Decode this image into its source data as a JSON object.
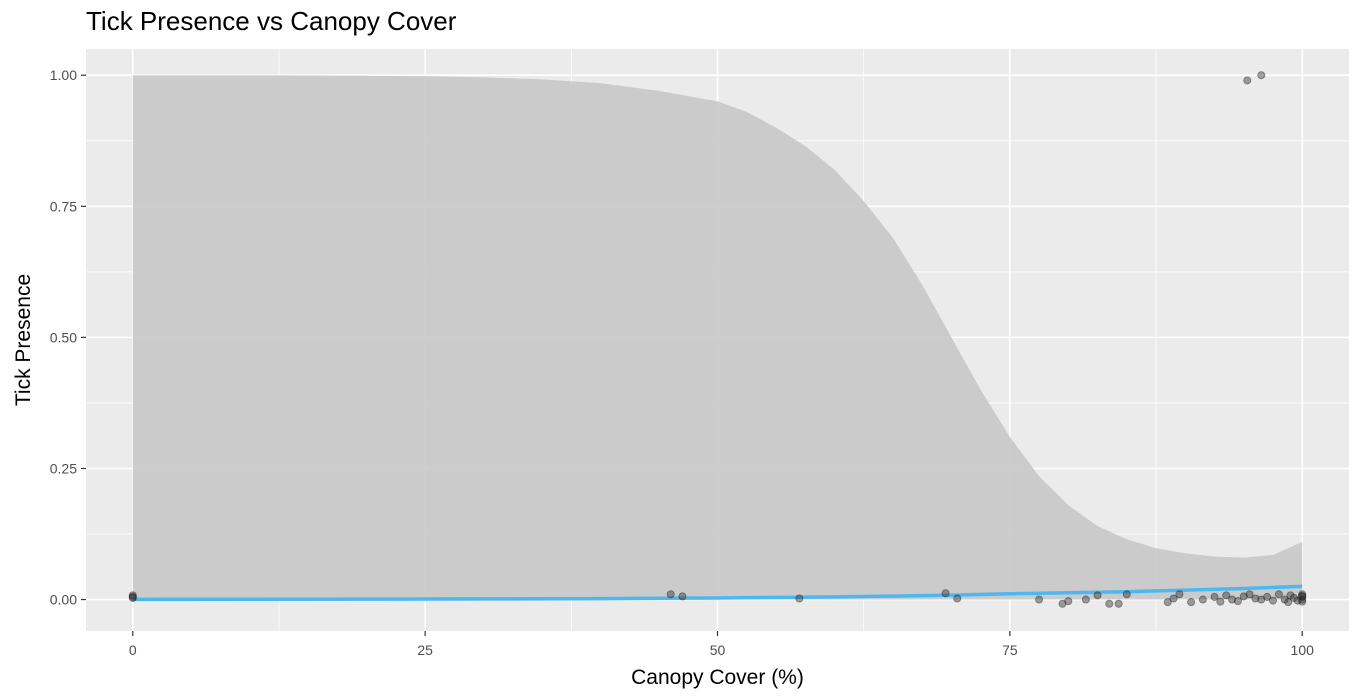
{
  "chart_data": {
    "type": "scatter",
    "title": "Tick Presence vs Canopy Cover",
    "xlabel": "Canopy Cover (%)",
    "ylabel": "Tick Presence",
    "xlim": [
      -4,
      104
    ],
    "ylim": [
      -0.06,
      1.05
    ],
    "x_ticks": [
      0,
      25,
      50,
      75,
      100
    ],
    "x_tick_labels": [
      "0",
      "25",
      "50",
      "75",
      "100"
    ],
    "y_ticks": [
      0,
      0.25,
      0.5,
      0.75,
      1
    ],
    "y_tick_labels": [
      "0.00",
      "0.25",
      "0.50",
      "0.75",
      "1.00"
    ],
    "grid": true,
    "colors": {
      "panel": "#ebebeb",
      "grid": "#ffffff",
      "ribbon": "#c8c8c8",
      "line": "#4db8f0",
      "points": "#333333"
    },
    "points": [
      {
        "x": 0,
        "y": 0.005
      },
      {
        "x": 0,
        "y": 0.008
      },
      {
        "x": 0,
        "y": 0.003
      },
      {
        "x": 46,
        "y": 0.01
      },
      {
        "x": 47,
        "y": 0.006
      },
      {
        "x": 57,
        "y": 0.002
      },
      {
        "x": 69.5,
        "y": 0.012
      },
      {
        "x": 70.5,
        "y": 0.002
      },
      {
        "x": 77.5,
        "y": 0.0
      },
      {
        "x": 79.5,
        "y": -0.008
      },
      {
        "x": 80,
        "y": -0.003
      },
      {
        "x": 81.5,
        "y": 0.0
      },
      {
        "x": 82.5,
        "y": 0.008
      },
      {
        "x": 83.5,
        "y": -0.008
      },
      {
        "x": 84.3,
        "y": -0.008
      },
      {
        "x": 85,
        "y": 0.01
      },
      {
        "x": 88.5,
        "y": -0.005
      },
      {
        "x": 89,
        "y": 0.002
      },
      {
        "x": 89.5,
        "y": 0.01
      },
      {
        "x": 90.5,
        "y": -0.005
      },
      {
        "x": 91.5,
        "y": 0.0
      },
      {
        "x": 92.5,
        "y": 0.005
      },
      {
        "x": 93,
        "y": -0.004
      },
      {
        "x": 93.5,
        "y": 0.008
      },
      {
        "x": 94,
        "y": 0.0
      },
      {
        "x": 94.5,
        "y": -0.003
      },
      {
        "x": 95,
        "y": 0.006
      },
      {
        "x": 95.5,
        "y": 0.01
      },
      {
        "x": 96,
        "y": 0.002
      },
      {
        "x": 96.5,
        "y": 0.0
      },
      {
        "x": 97,
        "y": 0.005
      },
      {
        "x": 97.5,
        "y": -0.002
      },
      {
        "x": 98,
        "y": 0.01
      },
      {
        "x": 98.5,
        "y": 0.0
      },
      {
        "x": 98.8,
        "y": -0.005
      },
      {
        "x": 99,
        "y": 0.008
      },
      {
        "x": 99.3,
        "y": 0.003
      },
      {
        "x": 99.6,
        "y": -0.002
      },
      {
        "x": 100,
        "y": 0.01
      },
      {
        "x": 100,
        "y": 0.005
      },
      {
        "x": 100,
        "y": 0.0
      },
      {
        "x": 100,
        "y": -0.004
      },
      {
        "x": 100,
        "y": 0.007
      },
      {
        "x": 95.3,
        "y": 0.99
      },
      {
        "x": 96.5,
        "y": 1.0
      }
    ],
    "smooth_line": {
      "x": [
        0,
        10,
        20,
        30,
        40,
        45,
        50,
        55,
        60,
        65,
        70,
        75,
        80,
        85,
        90,
        95,
        100
      ],
      "y": [
        0.0003,
        0.0005,
        0.0008,
        0.0012,
        0.0018,
        0.0023,
        0.003,
        0.004,
        0.005,
        0.0065,
        0.0085,
        0.011,
        0.013,
        0.015,
        0.018,
        0.021,
        0.025
      ]
    },
    "ribbon_upper": {
      "x": [
        0,
        10,
        20,
        25,
        30,
        35,
        40,
        45,
        50,
        52.5,
        55,
        57.5,
        60,
        62.5,
        65,
        67.5,
        70,
        72.5,
        75,
        77.5,
        80,
        82.5,
        85,
        87.5,
        90,
        92.5,
        95,
        97.5,
        100
      ],
      "y": [
        1.0,
        1.0,
        0.999,
        0.998,
        0.996,
        0.992,
        0.985,
        0.97,
        0.95,
        0.93,
        0.9,
        0.865,
        0.82,
        0.76,
        0.69,
        0.6,
        0.5,
        0.4,
        0.31,
        0.235,
        0.18,
        0.14,
        0.115,
        0.098,
        0.088,
        0.082,
        0.08,
        0.085,
        0.11
      ]
    }
  }
}
